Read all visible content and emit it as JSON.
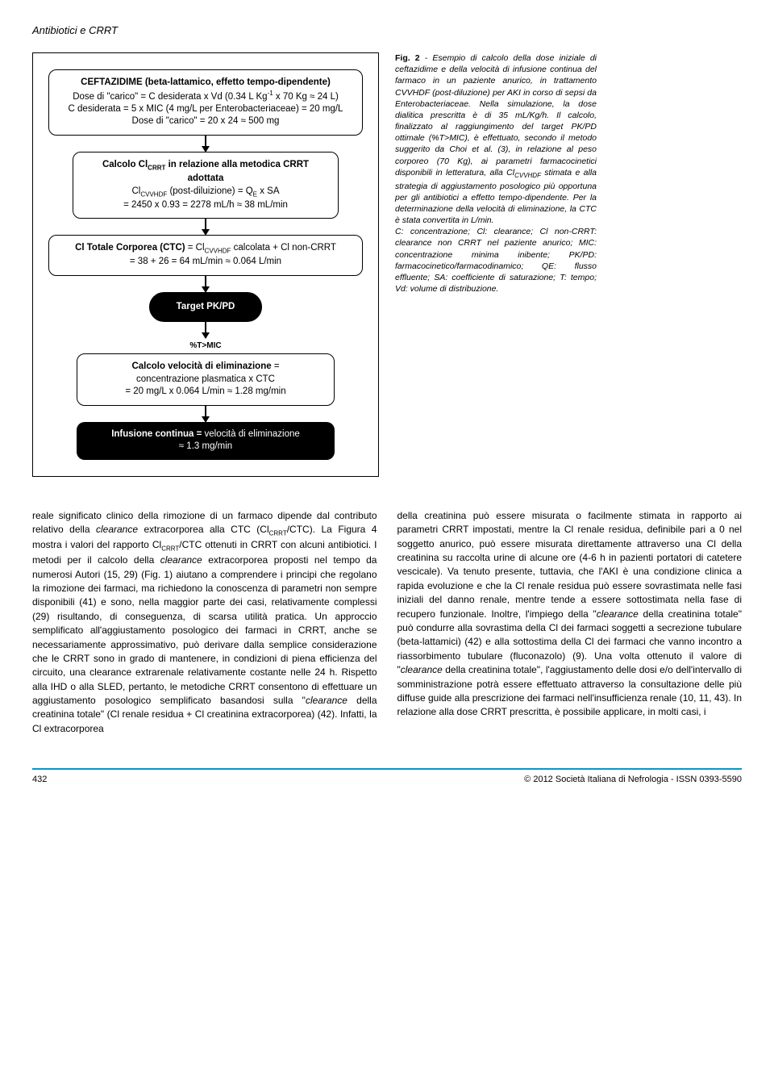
{
  "header": {
    "running_title": "Antibiotici e CRRT"
  },
  "flowchart": {
    "node1": {
      "title": "CEFTAZIDIME (beta-lattamico, effetto tempo-dipendente)",
      "line2": "Dose di \"carico\" = C desiderata x Vd (0.34 L Kg⁻¹ x 70 Kg ≈ 24 L)",
      "line3": "C desiderata = 5 x MIC (4 mg/L per Enterobacteriaceae) = 20 mg/L",
      "line4": "Dose di \"carico\" = 20 x 24 ≈ 500 mg"
    },
    "node2": {
      "line1": "Calcolo Cl_CRRT in relazione alla metodica CRRT adottata",
      "line2": "Cl_CVVHDF (post-diluizione) = Q_E x SA",
      "line3": "= 2450 x 0.93 = 2278 mL/h ≈ 38 mL/min"
    },
    "node3": {
      "line1": "Cl Totale Corporea (CTC) = Cl_CVVHDF calcolata  + Cl non-CRRT",
      "line2": "= 38 + 26 = 64 mL/min ≈ 0.064 L/min"
    },
    "node4": {
      "label": "Target PK/PD"
    },
    "arrow_label": "%T>MIC",
    "node5": {
      "line1": "Calcolo velocità di eliminazione =",
      "line2": "concentrazione plasmatica x CTC",
      "line3": "= 20 mg/L x 0.064 L/min ≈ 1.28 mg/min"
    },
    "node6": {
      "line1a": "Infusione continua = ",
      "line1b": "velocità di eliminazione",
      "line2": "≈ 1.3 mg/min"
    }
  },
  "caption": {
    "label": "Fig. 2",
    "text": " - Esempio di calcolo della dose iniziale di ceftazidime e della velocità di infusione continua del farmaco in un paziente anurico, in trattamento CVVHDF (post-diluzione) per AKI in corso di sepsi da Enterobacteriaceae. Nella simulazione, la dose dialitica prescritta è di 35 mL/Kg/h. Il calcolo, finalizzato al raggiungimento del target PK/PD ottimale (%T>MIC), è effettuato, secondo il metodo suggerito da Choi et al. (3), in relazione al peso corporeo (70 Kg), ai parametri farmacocinetici disponibili in letteratura, alla Cl_CVVHDF stimata e alla strategia di aggiustamento posologico più opportuna per gli antibiotici a effetto tempo-dipendente. Per la determinazione della velocità di eliminazione, la CTC è stata convertita in L/min.",
    "abbr": "C: concentrazione; Cl: clearance; Cl non-CRRT: clearance non CRRT nel paziente anurico; MIC: concentrazione minima inibente; PK/PD: farmacocinetico/farmacodinamico; QE: flusso effluente; SA: coefficiente di saturazione; T: tempo; Vd: volume di distribuzione."
  },
  "body": {
    "col1": "reale significato clinico della rimozione di un farmaco dipende dal contributo relativo della clearance extracorporea alla CTC (Cl_CRRT/CTC). La Figura 4 mostra i valori del rapporto Cl_CRRT/CTC ottenuti in CRRT con alcuni antibiotici. I metodi per il calcolo della clearance extracorporea proposti nel tempo da numerosi Autori (15, 29) (Fig. 1) aiutano a comprendere i principi che regolano la rimozione dei farmaci, ma richiedono la conoscenza di parametri non sempre disponibili (41) e sono, nella maggior parte dei casi, relativamente complessi (29) risultando, di conseguenza, di scarsa utilità pratica. Un approccio semplificato all'aggiustamento posologico dei farmaci in CRRT, anche se necessariamente approssimativo, può derivare dalla semplice considerazione che le CRRT sono in grado di mantenere, in condizioni di piena efficienza del circuito, una clearance extrarenale relativamente costante nelle 24 h. Rispetto alla IHD o alla SLED, pertanto, le metodiche CRRT consentono di effettuare un aggiustamento posologico semplificato basandosi sulla \"clearance della creatinina totale\" (Cl renale residua + Cl creatinina extracorporea) (42). Infatti, la Cl extracorporea",
    "col2": "della creatinina può essere misurata o facilmente stimata in rapporto ai parametri CRRT impostati, mentre la Cl renale residua, definibile pari a 0 nel soggetto anurico, può essere misurata direttamente attraverso una Cl della creatinina su raccolta urine di alcune ore (4-6 h in pazienti portatori di catetere vescicale). Va tenuto presente, tuttavia, che l'AKI è una condizione clinica a rapida evoluzione e che la Cl renale residua può essere sovrastimata nelle fasi iniziali del danno renale, mentre tende a essere sottostimata nella fase di recupero funzionale. Inoltre, l'impiego della \"clearance della creatinina totale\" può condurre alla sovrastima della Cl dei farmaci soggetti a secrezione tubulare (beta-lattamici) (42) e alla sottostima della Cl dei farmaci che vanno incontro a riassorbimento tubulare (fluconazolo) (9). Una volta ottenuto il valore di \"clearance della creatinina totale\", l'aggiustamento delle dosi e/o dell'intervallo di somministrazione potrà essere effettuato attraverso la consultazione delle più diffuse guide alla prescrizione dei farmaci nell'insufficienza renale (10, 11, 43). In relazione alla dose CRRT prescritta, è possibile applicare, in molti casi, i"
  },
  "footer": {
    "page": "432",
    "copyright": "© 2012 Società Italiana di Nefrologia - ISSN 0393-5590"
  }
}
